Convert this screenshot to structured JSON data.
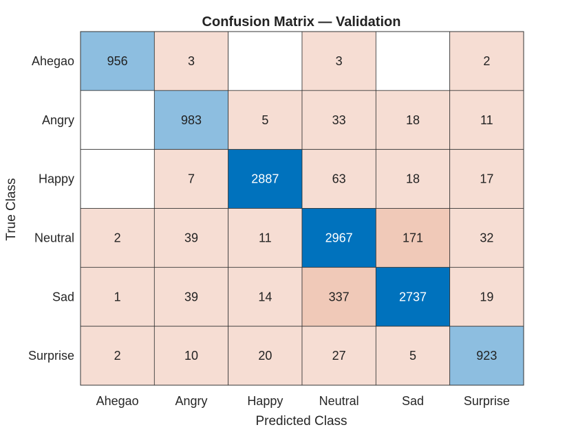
{
  "chart_data": {
    "type": "heatmap",
    "title": "Confusion Matrix — Validation",
    "xlabel": "Predicted Class",
    "ylabel": "True Class",
    "x_categories": [
      "Ahegao",
      "Angry",
      "Happy",
      "Neutral",
      "Sad",
      "Surprise"
    ],
    "y_categories": [
      "Ahegao",
      "Angry",
      "Happy",
      "Neutral",
      "Sad",
      "Surprise"
    ],
    "matrix": [
      [
        956,
        3,
        null,
        3,
        null,
        2
      ],
      [
        null,
        983,
        5,
        33,
        18,
        11
      ],
      [
        null,
        7,
        2887,
        63,
        18,
        17
      ],
      [
        2,
        39,
        11,
        2967,
        171,
        32
      ],
      [
        1,
        39,
        14,
        337,
        2737,
        19
      ],
      [
        2,
        10,
        20,
        27,
        5,
        923
      ]
    ],
    "colors": {
      "diagonal_strong": "#0072BD",
      "diagonal_light": "#8DBEE0",
      "off_diagonal": "#F6DDD3",
      "off_diagonal_dark": "#F0C9B8",
      "empty": "#FFFFFF",
      "grid": "#333333",
      "text_dark": "#222222",
      "text_light": "#FFFFFF"
    }
  }
}
